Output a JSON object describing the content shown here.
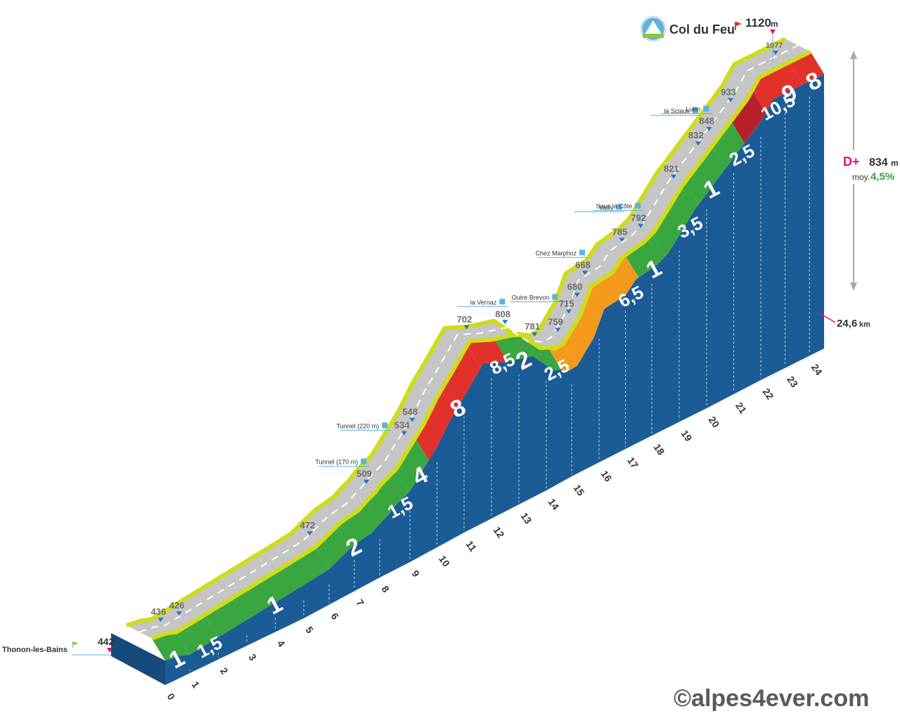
{
  "colors": {
    "side": "#1b5c96",
    "road": "#c5c5c5",
    "edge": "#cfdc1a",
    "g_green": "#3aa63f",
    "g_orange": "#f39a1d",
    "g_red": "#e2312b",
    "g_darkred": "#b8202a",
    "marker": "#1f77c9",
    "summit_marker": "#e0117a",
    "guide": "#5ab4e0"
  },
  "summit": {
    "name": "Col du Feu",
    "altitude": "1120",
    "unit": "m",
    "icon": "mountain-logo-icon",
    "flag": "red-flag-icon"
  },
  "start": {
    "name": "Thonon-les-Bains",
    "altitude": "442",
    "flag": "green-flag-icon"
  },
  "stats": {
    "gain_label": "D+",
    "gain_value": "834",
    "gain_unit": "m",
    "avg_label": "moy.",
    "avg_value": "4,5%"
  },
  "distance": {
    "total": "24,6",
    "unit": "km"
  },
  "copyright": "©alpes4ever.com",
  "chart_data": {
    "type": "area",
    "title": "Col du Feu",
    "xlabel": "km",
    "ylabel": "m",
    "x_ticks": [
      "0",
      "1",
      "2",
      "3",
      "4",
      "5",
      "6",
      "7",
      "8",
      "9",
      "10",
      "11",
      "12",
      "13",
      "14",
      "15",
      "16",
      "17",
      "18",
      "19",
      "20",
      "21",
      "22",
      "23",
      "24"
    ],
    "profile": [
      {
        "km": 0,
        "alt": 442
      },
      {
        "km": 0.6,
        "alt": 436
      },
      {
        "km": 1,
        "alt": 426
      },
      {
        "km": 2,
        "alt": 436
      },
      {
        "km": 3,
        "alt": 446
      },
      {
        "km": 4,
        "alt": 456
      },
      {
        "km": 5,
        "alt": 466
      },
      {
        "km": 6,
        "alt": 472
      },
      {
        "km": 6.5,
        "alt": 487
      },
      {
        "km": 7,
        "alt": 502
      },
      {
        "km": 7.7,
        "alt": 509
      },
      {
        "km": 8.3,
        "alt": 534
      },
      {
        "km": 8.5,
        "alt": 548
      },
      {
        "km": 9,
        "alt": 568
      },
      {
        "km": 10,
        "alt": 648
      },
      {
        "km": 10.5,
        "alt": 702
      },
      {
        "km": 11,
        "alt": 744
      },
      {
        "km": 11.7,
        "alt": 808
      },
      {
        "km": 12.5,
        "alt": 781
      },
      {
        "km": 13.5,
        "alt": 759
      },
      {
        "km": 14,
        "alt": 715
      },
      {
        "km": 14.3,
        "alt": 690
      },
      {
        "km": 14.6,
        "alt": 680
      },
      {
        "km": 14.9,
        "alt": 666
      },
      {
        "km": 15.2,
        "alt": 668
      },
      {
        "km": 15.8,
        "alt": 720
      },
      {
        "km": 16.2,
        "alt": 785
      },
      {
        "km": 17,
        "alt": 792
      },
      {
        "km": 17.4,
        "alt": 821
      },
      {
        "km": 18.2,
        "alt": 832
      },
      {
        "km": 18.6,
        "alt": 848
      },
      {
        "km": 19.6,
        "alt": 933
      },
      {
        "km": 22,
        "alt": 1077
      },
      {
        "km": 22.5,
        "alt": 1120
      },
      {
        "km": 24.6,
        "alt": 1120
      }
    ],
    "grade_labels": [
      {
        "km": 0.5,
        "value": "1",
        "color": "g_green"
      },
      {
        "km": 1.5,
        "value": "1,5",
        "color": "g_green"
      },
      {
        "km": 4,
        "value": "1",
        "color": "g_green"
      },
      {
        "km": 7,
        "value": "2",
        "color": "g_green"
      },
      {
        "km": 8.5,
        "value": "1,5",
        "color": "g_green"
      },
      {
        "km": 9.4,
        "value": "4",
        "color": "g_green"
      },
      {
        "km": 10.8,
        "value": "8",
        "color": "g_red"
      },
      {
        "km": 12.2,
        "value": "8,5",
        "color": "g_red"
      },
      {
        "km": 13.2,
        "value": "2",
        "color": "g_green"
      },
      {
        "km": 14.2,
        "value": "2,5",
        "color": "g_green"
      },
      {
        "km": 17,
        "value": "6,5",
        "color": "g_orange"
      },
      {
        "km": 18.1,
        "value": "1",
        "color": "g_green"
      },
      {
        "km": 19.2,
        "value": "3,5",
        "color": "g_green"
      },
      {
        "km": 20.2,
        "value": "1",
        "color": "g_green"
      },
      {
        "km": 21.1,
        "value": "2,5",
        "color": "g_green"
      },
      {
        "km": 22.3,
        "value": "10,5",
        "color": "g_darkred"
      },
      {
        "km": 23.2,
        "value": "9",
        "color": "g_red"
      },
      {
        "km": 24.2,
        "value": "8",
        "color": "g_red"
      }
    ],
    "altitude_marks": [
      {
        "km": 0.6,
        "label": "436"
      },
      {
        "km": 1.3,
        "label": "426"
      },
      {
        "km": 6,
        "label": "472"
      },
      {
        "km": 8.2,
        "label": "509"
      },
      {
        "km": 9.5,
        "label": "534"
      },
      {
        "km": 9.8,
        "label": "548"
      },
      {
        "km": 11.8,
        "label": "702"
      },
      {
        "km": 13.2,
        "label": "808"
      },
      {
        "km": 14.3,
        "label": "781"
      },
      {
        "km": 15.2,
        "label": "759"
      },
      {
        "km": 15.6,
        "label": "715"
      },
      {
        "km": 15.9,
        "label": "680"
      },
      {
        "km": 16.2,
        "label": "668"
      },
      {
        "km": 17.6,
        "label": "785"
      },
      {
        "km": 18.3,
        "label": "792"
      },
      {
        "km": 19.5,
        "label": "821"
      },
      {
        "km": 20.4,
        "label": "832"
      },
      {
        "km": 20.8,
        "label": "848"
      },
      {
        "km": 21.6,
        "label": "933"
      },
      {
        "km": 23.4,
        "label": "1077"
      }
    ],
    "places": [
      {
        "km": 8.2,
        "name": "Tunnel (170 m)",
        "icon": "tunnel-icon"
      },
      {
        "km": 8.9,
        "name": "Tunnel (220 m)",
        "icon": "tunnel-icon"
      },
      {
        "km": 13.2,
        "name": "la Vernaz",
        "icon": "village-icon"
      },
      {
        "km": 15.2,
        "name": "Outre Brevon",
        "icon": "hamlet-icon"
      },
      {
        "km": 16.2,
        "name": "Chez Marphoz",
        "icon": "village-icon"
      },
      {
        "km": 17.6,
        "name": "Vailly",
        "icon": "village-icon"
      },
      {
        "km": 18.3,
        "name": "Sous la Côte",
        "icon": "hamlet-icon"
      },
      {
        "km": 20.4,
        "name": "la Sciaux",
        "icon": "hamlet-icon"
      },
      {
        "km": 20.8,
        "name": "Lullin",
        "icon": "village-icon"
      }
    ]
  }
}
